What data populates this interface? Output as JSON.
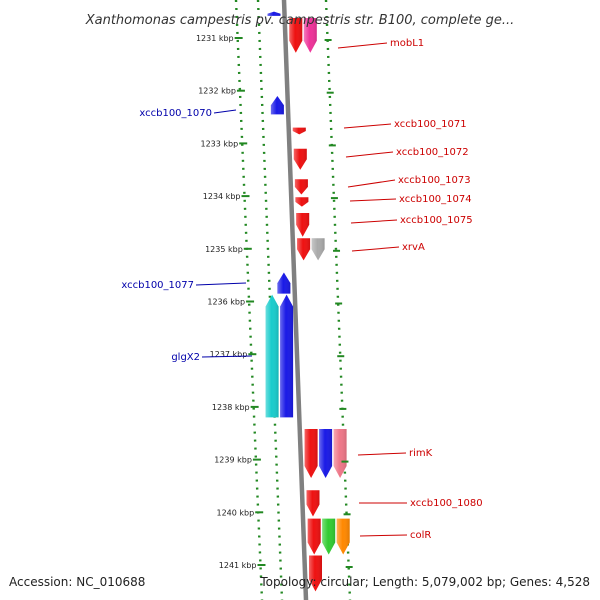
{
  "title": "Xanthomonas campestris pv. campestris str. B100, complete ge...",
  "footer": {
    "accession": "Accession: NC_010688",
    "summary": "Topology: circular; Length: 5,079,002 bp; Genes: 4,528"
  },
  "chart_data": {
    "type": "genome-map",
    "range_kbp": [
      1230.5,
      1241.5
    ],
    "ticks": [
      "1231 kbp",
      "1232 kbp",
      "1233 kbp",
      "1234 kbp",
      "1235 kbp",
      "1236 kbp",
      "1237 kbp",
      "1238 kbp",
      "1239 kbp",
      "1240 kbp",
      "1241 kbp"
    ],
    "tick_values": [
      1231,
      1232,
      1233,
      1234,
      1235,
      1236,
      1237,
      1238,
      1239,
      1240,
      1241
    ],
    "genes": [
      {
        "label": "",
        "start": 1230.5,
        "end": 1230.58,
        "strand": "-",
        "lane": 0,
        "color": "#1a1ae6"
      },
      {
        "label": "mobL1",
        "start": 1230.62,
        "end": 1231.28,
        "strand": "+",
        "lane": 0,
        "color": "#ee1111"
      },
      {
        "label": "",
        "start": 1230.62,
        "end": 1231.28,
        "strand": "+",
        "lane": 1,
        "color": "#ee3399"
      },
      {
        "label": "",
        "start": 1230.6,
        "end": 1230.62,
        "strand": "+",
        "lane": 2,
        "color": "#cccccc"
      },
      {
        "label": "xccb100_1070",
        "start": 1232.1,
        "end": 1232.45,
        "strand": "-",
        "lane": 0,
        "color": "#1a1ae6"
      },
      {
        "label": "xccb100_1071",
        "start": 1232.7,
        "end": 1232.83,
        "strand": "+",
        "lane": 0,
        "color": "#ee1111"
      },
      {
        "label": "xccb100_1072",
        "start": 1233.1,
        "end": 1233.5,
        "strand": "+",
        "lane": 0,
        "color": "#ee1111"
      },
      {
        "label": "xccb100_1073",
        "start": 1233.68,
        "end": 1233.97,
        "strand": "+",
        "lane": 0,
        "color": "#ee1111"
      },
      {
        "label": "xccb100_1074",
        "start": 1234.02,
        "end": 1234.2,
        "strand": "+",
        "lane": 0,
        "color": "#ee1111"
      },
      {
        "label": "xccb100_1075",
        "start": 1234.32,
        "end": 1234.77,
        "strand": "+",
        "lane": 0,
        "color": "#ee1111"
      },
      {
        "label": "xrvA",
        "start": 1234.8,
        "end": 1235.22,
        "strand": "+",
        "lane": 0,
        "color": "#ee1111"
      },
      {
        "label": "",
        "start": 1234.8,
        "end": 1235.22,
        "strand": "+",
        "lane": 1,
        "color": "#aaaaaa"
      },
      {
        "label": "xccb100_1077",
        "start": 1235.45,
        "end": 1235.85,
        "strand": "-",
        "lane": 0,
        "color": "#1a1ae6"
      },
      {
        "label": "",
        "start": 1235.87,
        "end": 1238.2,
        "strand": "-",
        "lane": 0,
        "color": "#1a1ae6"
      },
      {
        "label": "glgX2",
        "start": 1235.87,
        "end": 1238.2,
        "strand": "-",
        "lane": 1,
        "color": "#1acccc"
      },
      {
        "label": "rimK",
        "start": 1238.42,
        "end": 1239.35,
        "strand": "+",
        "lane": 0,
        "color": "#ee1111"
      },
      {
        "label": "",
        "start": 1238.42,
        "end": 1239.35,
        "strand": "+",
        "lane": 1,
        "color": "#1a1ae6"
      },
      {
        "label": "",
        "start": 1238.42,
        "end": 1239.35,
        "strand": "+",
        "lane": 2,
        "color": "#ee7788"
      },
      {
        "label": "xccb100_1080",
        "start": 1239.58,
        "end": 1240.08,
        "strand": "+",
        "lane": 0,
        "color": "#ee1111"
      },
      {
        "label": "colR",
        "start": 1240.12,
        "end": 1240.8,
        "strand": "+",
        "lane": 0,
        "color": "#ee1111"
      },
      {
        "label": "",
        "start": 1240.12,
        "end": 1240.8,
        "strand": "+",
        "lane": 1,
        "color": "#33cc33"
      },
      {
        "label": "",
        "start": 1240.12,
        "end": 1240.8,
        "strand": "+",
        "lane": 2,
        "color": "#ff8800"
      },
      {
        "label": "",
        "start": 1240.82,
        "end": 1241.5,
        "strand": "+",
        "lane": 0,
        "color": "#ee1111"
      }
    ],
    "label_color_forward": "#cc0000",
    "label_color_reverse": "#0000aa",
    "backbone_color": "#808080",
    "guide_color": "#228822"
  }
}
